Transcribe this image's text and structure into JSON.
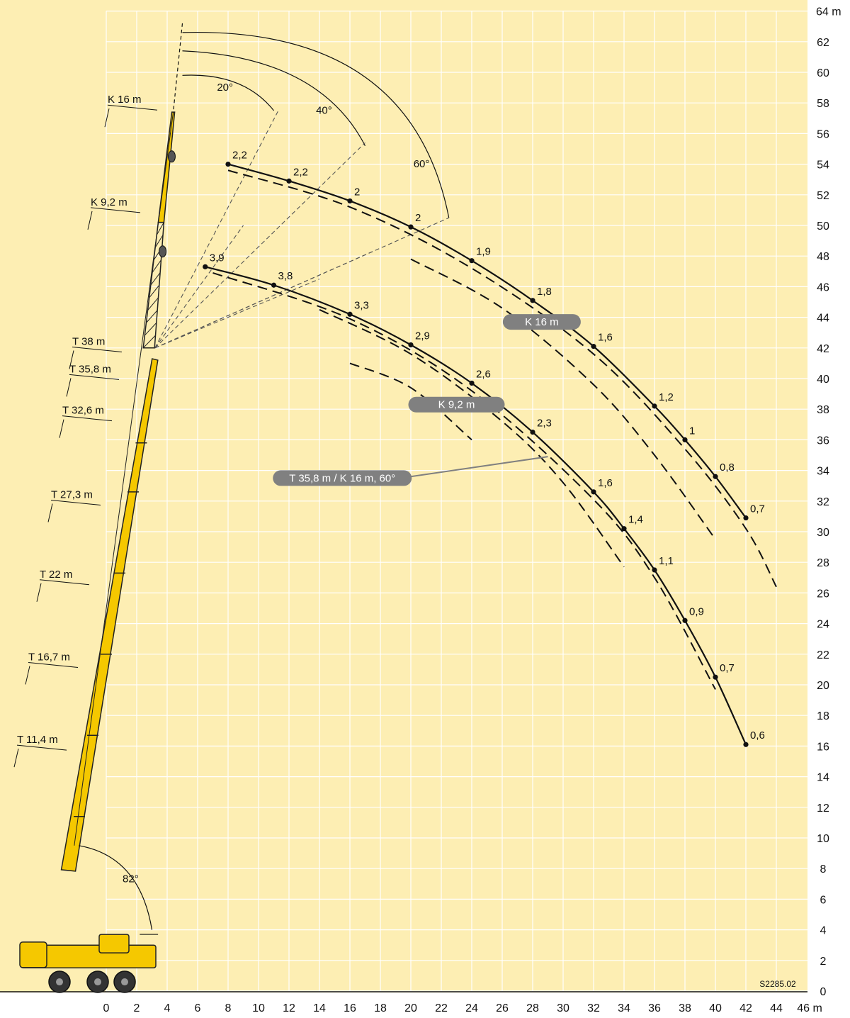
{
  "colors": {
    "background": "#fdeeb3",
    "grid": "#ffffff",
    "crane_yellow": "#f5c800",
    "crane_outline": "#222222",
    "curve": "#111111",
    "label_pill": "#808080",
    "label_pill_text": "#ffffff"
  },
  "chart_data": {
    "type": "line",
    "title": "",
    "xlabel": "",
    "ylabel": "",
    "x_unit": "m",
    "y_unit": "m",
    "xlim": [
      -7,
      46
    ],
    "ylim": [
      0,
      64
    ],
    "x_ticks": [
      0,
      2,
      4,
      6,
      8,
      10,
      12,
      14,
      16,
      18,
      20,
      22,
      24,
      26,
      28,
      30,
      32,
      34,
      36,
      38,
      40,
      42,
      44,
      46
    ],
    "y_ticks": [
      0,
      2,
      4,
      6,
      8,
      10,
      12,
      14,
      16,
      18,
      20,
      22,
      24,
      26,
      28,
      30,
      32,
      34,
      36,
      38,
      40,
      42,
      44,
      46,
      48,
      50,
      52,
      54,
      56,
      58,
      60,
      62,
      64
    ],
    "grid": true,
    "series": [
      {
        "name": "K 16 m",
        "style": "solid",
        "points": [
          {
            "x": 8,
            "y": 54,
            "label": "2,2"
          },
          {
            "x": 12,
            "y": 52.9,
            "label": "2,2"
          },
          {
            "x": 16,
            "y": 51.6,
            "label": "2"
          },
          {
            "x": 20,
            "y": 49.9,
            "label": "2"
          },
          {
            "x": 24,
            "y": 47.7,
            "label": "1,9"
          },
          {
            "x": 28,
            "y": 45.1,
            "label": "1,8"
          },
          {
            "x": 32,
            "y": 42.1,
            "label": "1,6"
          },
          {
            "x": 36,
            "y": 38.2,
            "label": "1,2"
          },
          {
            "x": 38,
            "y": 36.0,
            "label": "1"
          },
          {
            "x": 40,
            "y": 33.6,
            "label": "0,8"
          },
          {
            "x": 42,
            "y": 30.9,
            "label": "0,7"
          }
        ]
      },
      {
        "name": "K 9,2 m",
        "style": "solid",
        "points": [
          {
            "x": 6.5,
            "y": 47.3,
            "label": "3,9"
          },
          {
            "x": 11,
            "y": 46.1,
            "label": "3,8"
          },
          {
            "x": 16,
            "y": 44.2,
            "label": "3,3"
          },
          {
            "x": 20,
            "y": 42.2,
            "label": "2,9"
          },
          {
            "x": 24,
            "y": 39.7,
            "label": "2,6"
          },
          {
            "x": 28,
            "y": 36.5,
            "label": "2,3"
          },
          {
            "x": 32,
            "y": 32.6,
            "label": "1,6"
          },
          {
            "x": 34,
            "y": 30.2,
            "label": "1,4"
          },
          {
            "x": 36,
            "y": 27.5,
            "label": "1,1"
          },
          {
            "x": 38,
            "y": 24.2,
            "label": "0,9"
          },
          {
            "x": 40,
            "y": 20.5,
            "label": "0,7"
          },
          {
            "x": 42,
            "y": 16.1,
            "label": "0,6"
          }
        ]
      },
      {
        "name": "",
        "style": "dashed",
        "points": [
          {
            "x": 8,
            "y": 53.6
          },
          {
            "x": 16,
            "y": 51.2
          },
          {
            "x": 24,
            "y": 47.2
          },
          {
            "x": 32,
            "y": 41.6
          },
          {
            "x": 38,
            "y": 35.4
          },
          {
            "x": 42,
            "y": 30.2
          },
          {
            "x": 44,
            "y": 26.4
          }
        ]
      },
      {
        "name": "",
        "style": "dashed",
        "points": [
          {
            "x": 20,
            "y": 47.8
          },
          {
            "x": 26,
            "y": 44.6
          },
          {
            "x": 32,
            "y": 39.6
          },
          {
            "x": 36,
            "y": 35.0
          },
          {
            "x": 40,
            "y": 29.5
          }
        ]
      },
      {
        "name": "",
        "style": "dashed",
        "points": [
          {
            "x": 7,
            "y": 46.9
          },
          {
            "x": 16,
            "y": 43.9
          },
          {
            "x": 24,
            "y": 39.2
          },
          {
            "x": 32,
            "y": 32.1
          },
          {
            "x": 36,
            "y": 27.0
          },
          {
            "x": 40,
            "y": 19.7
          }
        ]
      },
      {
        "name": "",
        "style": "dashed",
        "points": [
          {
            "x": 14,
            "y": 44.5
          },
          {
            "x": 20,
            "y": 41.6
          },
          {
            "x": 26,
            "y": 37.2
          },
          {
            "x": 30,
            "y": 33.2
          },
          {
            "x": 34,
            "y": 27.7
          }
        ]
      },
      {
        "name": "",
        "style": "dashed",
        "points": [
          {
            "x": 16,
            "y": 41.0
          },
          {
            "x": 20,
            "y": 39.4
          },
          {
            "x": 24,
            "y": 36.0
          }
        ]
      }
    ],
    "annotations": [
      {
        "text": "20°",
        "kind": "angle"
      },
      {
        "text": "40°",
        "kind": "angle"
      },
      {
        "text": "60°",
        "kind": "angle"
      },
      {
        "text": "82°",
        "kind": "angle"
      },
      {
        "text": "K 16 m",
        "kind": "pill"
      },
      {
        "text": "K 9,2 m",
        "kind": "pill"
      },
      {
        "text": "T 35,8 m / K 16 m, 60°",
        "kind": "pill"
      }
    ],
    "boom_labels": [
      "K 16 m",
      "K 9,2 m",
      "T 38 m",
      "T 35,8 m",
      "T 32,6 m",
      "T 27,3 m",
      "T 22 m",
      "T 16,7 m",
      "T 11,4 m"
    ],
    "x_unit_label": "46 m",
    "y_unit_label": "64 m",
    "figure_code": "S2285.02"
  }
}
